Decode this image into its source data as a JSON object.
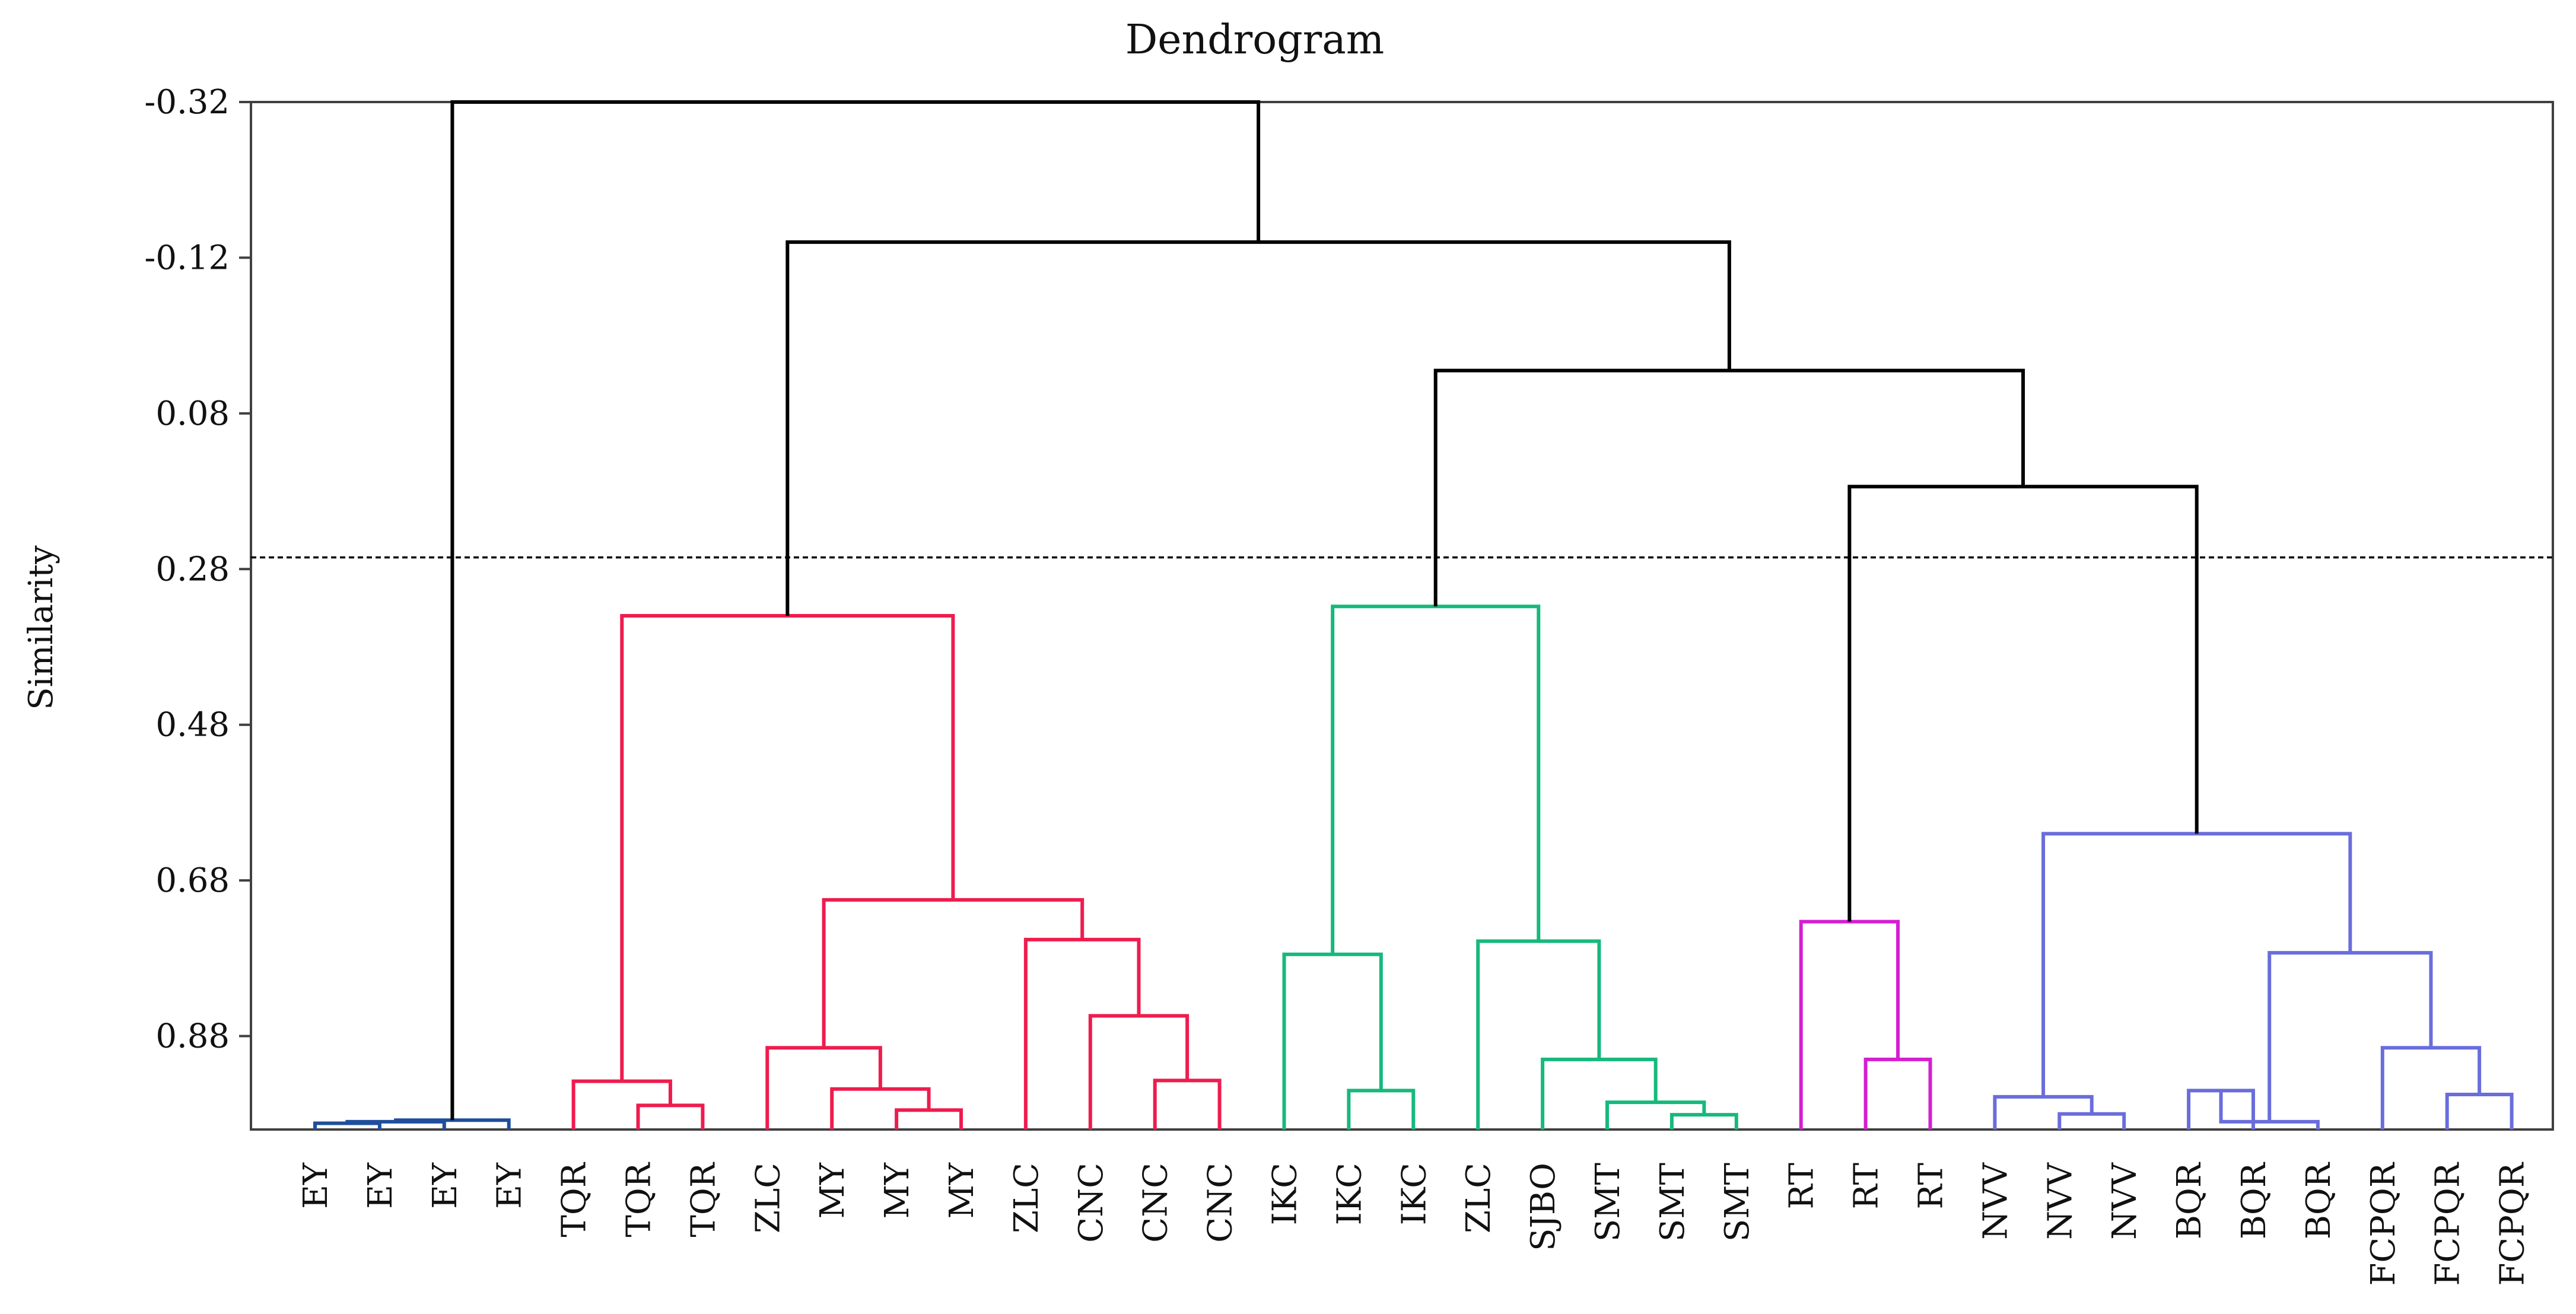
{
  "chart_data": {
    "type": "dendrogram",
    "title": "Dendrogram",
    "ylabel": "Similarity",
    "xlabel": "",
    "ylim": [
      -0.32,
      1.0
    ],
    "yticks": [
      "-0.32",
      "-0.12",
      "0.08",
      "0.28",
      "0.48",
      "0.68",
      "0.88"
    ],
    "ytick_values": [
      -0.32,
      -0.12,
      0.08,
      0.28,
      0.48,
      0.68,
      0.88
    ],
    "cutoff": 0.265,
    "colors": {
      "top": "#000000",
      "ey": "#1f4e9c",
      "c1": "#ee1c4e",
      "c2": "#16b97c",
      "c3": "#d41fd1",
      "c4": "#6a6ddb"
    },
    "leaves": [
      "EY",
      "EY",
      "EY",
      "EY",
      "TQR",
      "TQR",
      "TQR",
      "ZLC",
      "MY",
      "MY",
      "MY",
      "ZLC",
      "CNC",
      "CNC",
      "CNC",
      "IKC",
      "IKC",
      "IKC",
      "ZLC",
      "SJBO",
      "SMT",
      "SMT",
      "SMT",
      "RT",
      "RT",
      "RT",
      "NVV",
      "NVV",
      "NVV",
      "BQR",
      "BQR",
      "BQR",
      "FCPQR",
      "FCPQR",
      "FCPQR"
    ],
    "merges": [
      {
        "id": "a1",
        "left": 0,
        "right": 1,
        "similarity": 0.992,
        "color": "ey"
      },
      {
        "id": "a2",
        "left": "a1",
        "right": 2,
        "similarity": 0.99,
        "color": "ey"
      },
      {
        "id": "a3",
        "left": "a2",
        "right": 3,
        "similarity": 0.988,
        "color": "ey"
      },
      {
        "id": "b1",
        "left": 5,
        "right": 6,
        "similarity": 0.969,
        "color": "c1"
      },
      {
        "id": "b2",
        "left": 4,
        "right": "b1",
        "similarity": 0.938,
        "color": "c1"
      },
      {
        "id": "b3",
        "left": 9,
        "right": 10,
        "similarity": 0.975,
        "color": "c1"
      },
      {
        "id": "b4",
        "left": 8,
        "right": "b3",
        "similarity": 0.948,
        "color": "c1"
      },
      {
        "id": "b5",
        "left": 7,
        "right": "b4",
        "similarity": 0.895,
        "color": "c1"
      },
      {
        "id": "b6",
        "left": 13,
        "right": 14,
        "similarity": 0.937,
        "color": "c1"
      },
      {
        "id": "b7",
        "left": 12,
        "right": "b6",
        "similarity": 0.854,
        "color": "c1"
      },
      {
        "id": "b8",
        "left": 11,
        "right": "b7",
        "similarity": 0.756,
        "color": "c1"
      },
      {
        "id": "b9",
        "left": "b5",
        "right": "b8",
        "similarity": 0.705,
        "color": "c1"
      },
      {
        "id": "b10",
        "left": "b2",
        "right": "b9",
        "similarity": 0.34,
        "color": "c1"
      },
      {
        "id": "g1",
        "left": 16,
        "right": 17,
        "similarity": 0.95,
        "color": "c2"
      },
      {
        "id": "g2",
        "left": 15,
        "right": "g1",
        "similarity": 0.775,
        "color": "c2"
      },
      {
        "id": "g3",
        "left": 21,
        "right": 22,
        "similarity": 0.981,
        "color": "c2"
      },
      {
        "id": "g4",
        "left": 20,
        "right": "g3",
        "similarity": 0.965,
        "color": "c2"
      },
      {
        "id": "g5",
        "left": 19,
        "right": "g4",
        "similarity": 0.91,
        "color": "c2"
      },
      {
        "id": "g6",
        "left": 18,
        "right": "g5",
        "similarity": 0.758,
        "color": "c2"
      },
      {
        "id": "g7",
        "left": "g2",
        "right": "g6",
        "similarity": 0.328,
        "color": "c2"
      },
      {
        "id": "m1",
        "left": 24,
        "right": 25,
        "similarity": 0.91,
        "color": "c3"
      },
      {
        "id": "m2",
        "left": 23,
        "right": "m1",
        "similarity": 0.733,
        "color": "c3"
      },
      {
        "id": "p1",
        "left": 27,
        "right": 28,
        "similarity": 0.98,
        "color": "c4"
      },
      {
        "id": "p2",
        "left": 26,
        "right": "p1",
        "similarity": 0.958,
        "color": "c4"
      },
      {
        "id": "p3",
        "left": 29,
        "right": 30,
        "similarity": 0.95,
        "color": "c4"
      },
      {
        "id": "p4",
        "left": "p3",
        "right": 31,
        "similarity": 0.99,
        "color": "c4"
      },
      {
        "id": "p5",
        "left": 33,
        "right": 34,
        "similarity": 0.955,
        "color": "c4"
      },
      {
        "id": "p6",
        "left": 32,
        "right": "p5",
        "similarity": 0.895,
        "color": "c4"
      },
      {
        "id": "p7",
        "left": "p4",
        "right": "p6",
        "similarity": 0.773,
        "color": "c4"
      },
      {
        "id": "p8",
        "left": "p2",
        "right": "p7",
        "similarity": 0.62,
        "color": "c4"
      },
      {
        "id": "t1",
        "left": "m2",
        "right": "p8",
        "similarity": 0.174,
        "color": "top"
      },
      {
        "id": "t2",
        "left": "g7",
        "right": "t1",
        "similarity": 0.025,
        "color": "top"
      },
      {
        "id": "t3",
        "left": "b10",
        "right": "t2",
        "similarity": -0.14,
        "color": "top"
      },
      {
        "id": "t4",
        "left": "a3",
        "right": "t3",
        "similarity": -0.32,
        "color": "top"
      }
    ]
  }
}
